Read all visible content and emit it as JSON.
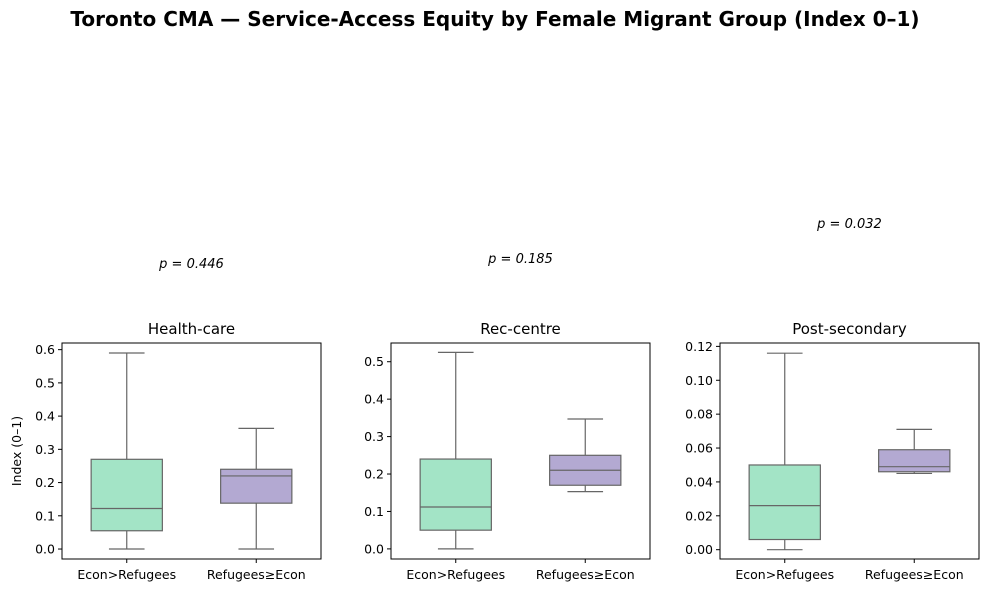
{
  "title": "Toronto CMA — Service-Access Equity by Female Migrant Group (Index 0–1)",
  "colors": {
    "group1": "#a3e4c6",
    "group2": "#b3a9d2",
    "line": "#666666"
  },
  "chart_data": [
    {
      "type": "box",
      "title": "Health-care",
      "ylabel": "Index (0–1)",
      "categories": [
        "Econ>Refugees",
        "Refugees≥Econ"
      ],
      "ylim": [
        -0.03,
        0.62
      ],
      "yticks": [
        0.0,
        0.1,
        0.2,
        0.3,
        0.4,
        0.5,
        0.6
      ],
      "tick_decimals": 1,
      "annotation": "p = 0.446",
      "boxes": [
        {
          "min": 0.0,
          "q1": 0.055,
          "median": 0.122,
          "q3": 0.27,
          "max": 0.59
        },
        {
          "min": 0.0,
          "q1": 0.138,
          "median": 0.22,
          "q3": 0.24,
          "max": 0.363
        }
      ]
    },
    {
      "type": "box",
      "title": "Rec-centre",
      "ylabel": "",
      "categories": [
        "Econ>Refugees",
        "Refugees≥Econ"
      ],
      "ylim": [
        -0.027,
        0.55
      ],
      "yticks": [
        0.0,
        0.1,
        0.2,
        0.3,
        0.4,
        0.5
      ],
      "tick_decimals": 1,
      "annotation": "p = 0.185",
      "boxes": [
        {
          "min": 0.0,
          "q1": 0.05,
          "median": 0.112,
          "q3": 0.24,
          "max": 0.525
        },
        {
          "min": 0.153,
          "q1": 0.17,
          "median": 0.21,
          "q3": 0.25,
          "max": 0.347
        }
      ]
    },
    {
      "type": "box",
      "title": "Post-secondary",
      "ylabel": "",
      "categories": [
        "Econ>Refugees",
        "Refugees≥Econ"
      ],
      "ylim": [
        -0.0055,
        0.122
      ],
      "yticks": [
        0.0,
        0.02,
        0.04,
        0.06,
        0.08,
        0.1,
        0.12
      ],
      "tick_decimals": 2,
      "annotation": "p = 0.032",
      "boxes": [
        {
          "min": 0.0,
          "q1": 0.006,
          "median": 0.026,
          "q3": 0.05,
          "max": 0.116
        },
        {
          "min": 0.045,
          "q1": 0.046,
          "median": 0.049,
          "q3": 0.059,
          "max": 0.071
        }
      ]
    }
  ]
}
